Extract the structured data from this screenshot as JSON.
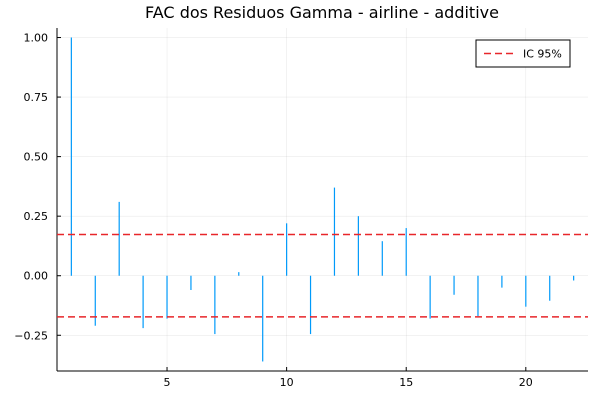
{
  "chart_data": {
    "type": "bar",
    "title": "FAC dos Residuos  Gamma - airline - additive",
    "xlabel": "",
    "ylabel": "",
    "xlim": [
      0.4,
      22.6
    ],
    "ylim": [
      -0.4,
      1.04
    ],
    "x_ticks": [
      5,
      10,
      15,
      20
    ],
    "y_ticks": [
      -0.25,
      0.0,
      0.25,
      0.5,
      0.75,
      1.0
    ],
    "y_tick_labels": [
      "−0.25",
      "0.00",
      "0.25",
      "0.50",
      "0.75",
      "1.00"
    ],
    "grid": true,
    "legend_position": "top-right",
    "series": [
      {
        "lags": [
          1,
          2,
          3,
          4,
          5,
          6,
          7,
          8,
          9,
          10,
          11,
          12,
          13,
          14,
          15,
          16,
          17,
          18,
          19,
          20,
          21,
          22
        ],
        "values": [
          1.0,
          -0.21,
          0.31,
          -0.22,
          -0.18,
          -0.06,
          -0.245,
          0.015,
          -0.36,
          0.22,
          -0.245,
          0.37,
          0.25,
          0.145,
          0.2,
          -0.18,
          -0.08,
          -0.17,
          -0.05,
          -0.13,
          -0.105,
          -0.02
        ],
        "color": "#009AFA"
      }
    ],
    "confidence_band": {
      "name": "IC 95%",
      "upper": 0.173,
      "lower": -0.173,
      "color": "#E8262A",
      "style": "dashed"
    }
  }
}
